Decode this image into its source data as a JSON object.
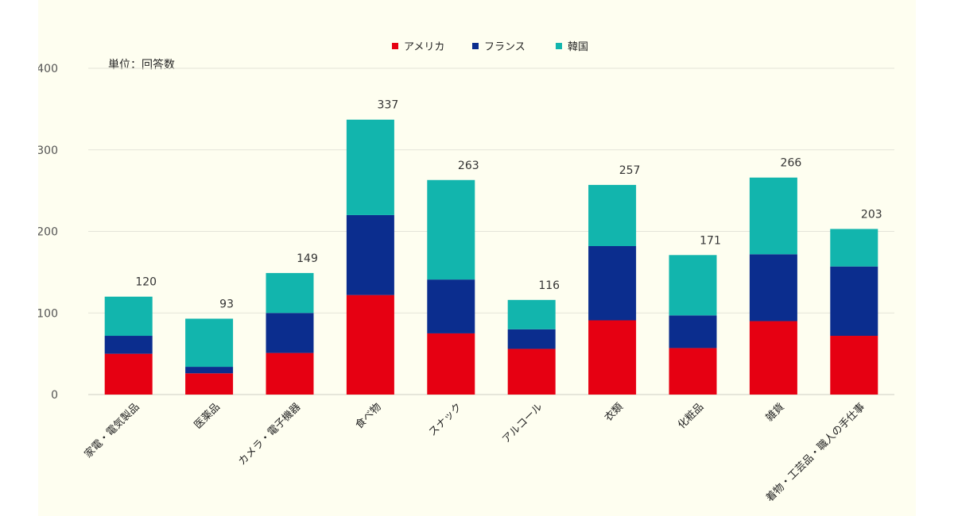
{
  "chart_data": {
    "type": "bar",
    "stacked": true,
    "unit_label": "単位：回答数",
    "categories": [
      "家電・電気製品",
      "医薬品",
      "カメラ・電子機器",
      "食べ物",
      "スナック",
      "アルコール",
      "衣類",
      "化粧品",
      "雑貨",
      "着物・工芸品・職人の手仕事"
    ],
    "series": [
      {
        "name": "アメリカ",
        "color": "#e60012",
        "values": [
          50,
          26,
          51,
          122,
          75,
          56,
          91,
          57,
          90,
          72
        ]
      },
      {
        "name": "フランス",
        "color": "#0b2d8e",
        "values": [
          22,
          8,
          49,
          98,
          66,
          24,
          91,
          40,
          82,
          85
        ]
      },
      {
        "name": "韓国",
        "color": "#12b5ad",
        "values": [
          48,
          59,
          49,
          117,
          122,
          36,
          75,
          74,
          94,
          46
        ]
      }
    ],
    "totals": [
      "120",
      "93",
      "149",
      "337",
      "263",
      "116",
      "257",
      "171",
      "266",
      "203"
    ],
    "ylim": [
      0,
      400
    ],
    "yticks": [
      "0",
      "100",
      "200",
      "300",
      "400"
    ],
    "legend_position": "top-center",
    "grid": true
  }
}
